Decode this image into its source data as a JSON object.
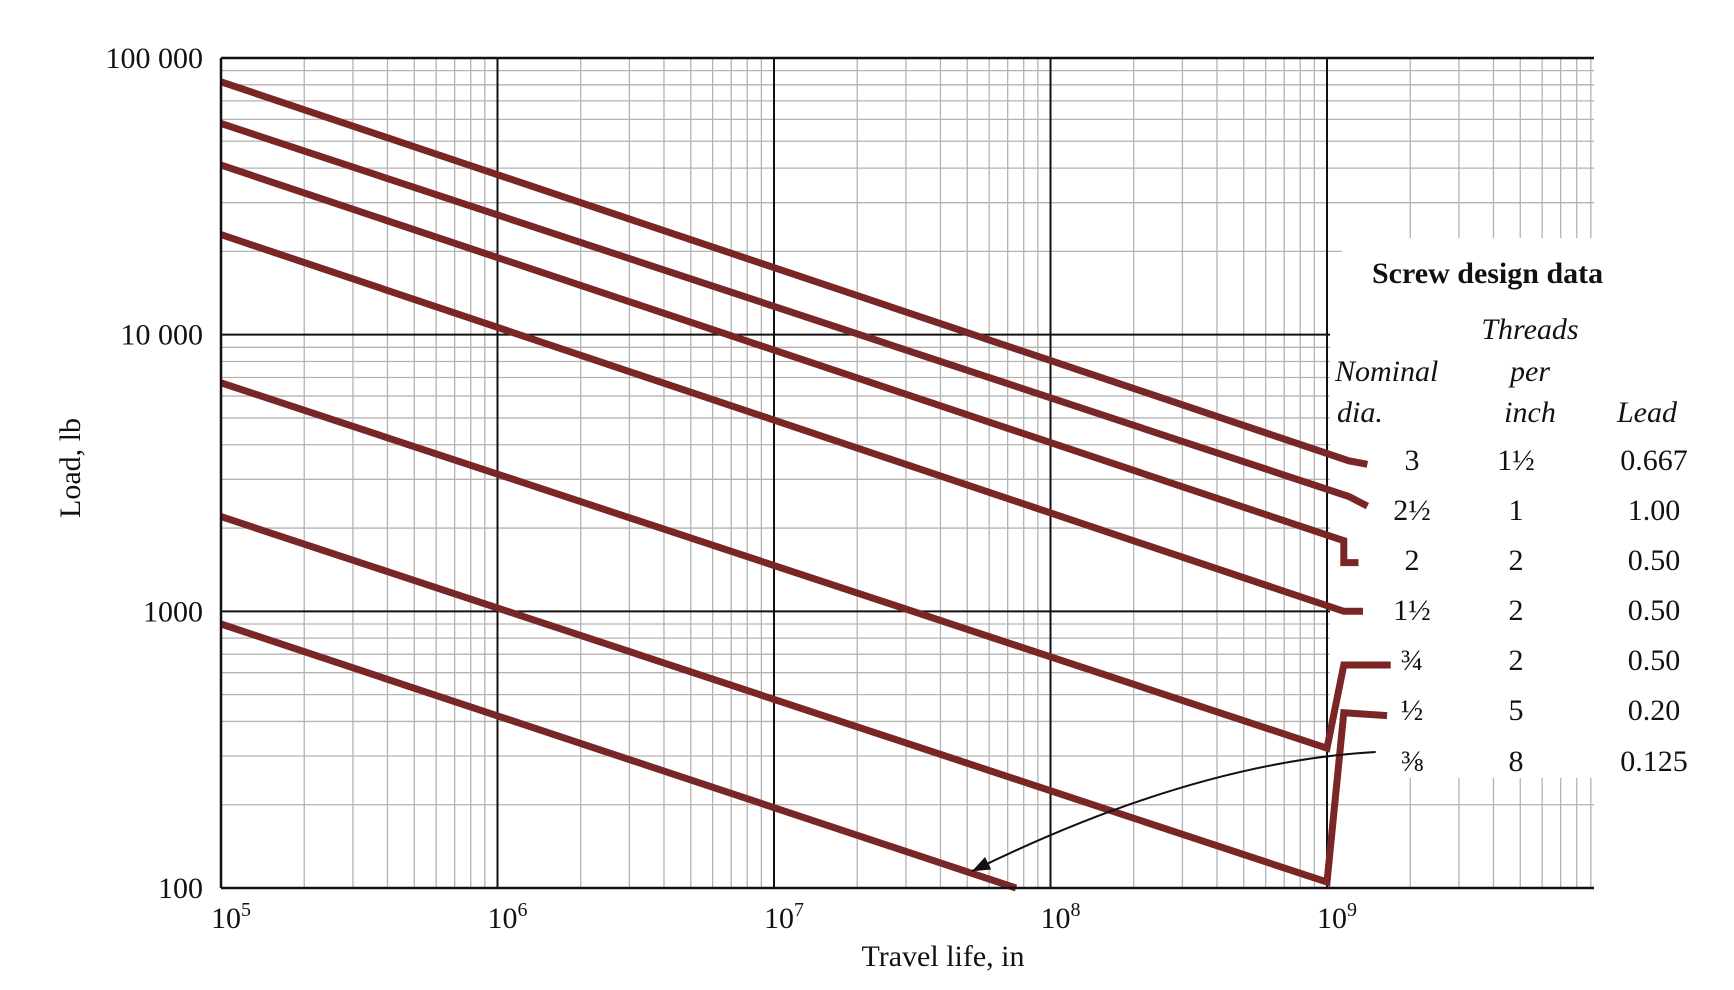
{
  "chart_data": {
    "type": "line",
    "title": "",
    "xlabel": "Travel life, in",
    "ylabel": "Load, lb",
    "x_scale": "log",
    "y_scale": "log",
    "xlim": [
      100000,
      10000000000
    ],
    "ylim": [
      100,
      100000
    ],
    "grid": true,
    "x_ticks": [
      {
        "base": "10",
        "exp": "5"
      },
      {
        "base": "10",
        "exp": "6"
      },
      {
        "base": "10",
        "exp": "7"
      },
      {
        "base": "10",
        "exp": "8"
      },
      {
        "base": "10",
        "exp": "9"
      }
    ],
    "y_ticks": [
      "100",
      "1000",
      "10 000",
      "100 000"
    ],
    "series": [
      {
        "points": [
          [
            100000,
            82000
          ],
          [
            1200000000,
            3500
          ],
          [
            1400000000,
            3400
          ]
        ]
      },
      {
        "points": [
          [
            100000,
            58000
          ],
          [
            1200000000,
            2600
          ],
          [
            1400000000,
            2400
          ]
        ]
      },
      {
        "points": [
          [
            100000,
            41000
          ],
          [
            1150000000,
            1800
          ],
          [
            1150000000,
            1500
          ],
          [
            1300000000,
            1500
          ]
        ]
      },
      {
        "points": [
          [
            100000,
            23000
          ],
          [
            1150000000,
            1000
          ],
          [
            1350000000,
            1000
          ]
        ]
      },
      {
        "points": [
          [
            100000,
            6700
          ],
          [
            1000000000,
            320
          ],
          [
            1150000000,
            640
          ],
          [
            1700000000,
            640
          ]
        ]
      },
      {
        "points": [
          [
            100000,
            2200
          ],
          [
            1000000000,
            105
          ],
          [
            1150000000,
            430
          ],
          [
            1650000000,
            420
          ]
        ]
      },
      {
        "points": [
          [
            100000,
            900
          ],
          [
            75000000,
            100
          ]
        ]
      }
    ],
    "annotations": [
      {
        "text": "",
        "from": [
          1500000000,
          310
        ],
        "to": [
          52000000,
          115
        ],
        "arrow": true
      }
    ],
    "legend": {
      "title": "Screw design data",
      "columns": {
        "nominal_dia": [
          "Nominal",
          "dia."
        ],
        "threads_per_inch": [
          "Threads",
          "per",
          "inch"
        ],
        "lead": [
          "Lead"
        ]
      },
      "rows": [
        {
          "dia": "3",
          "threads": "1½",
          "lead": "0.667"
        },
        {
          "dia": "2½",
          "threads": "1",
          "lead": "1.00"
        },
        {
          "dia": "2",
          "threads": "2",
          "lead": "0.50"
        },
        {
          "dia": "1½",
          "threads": "2",
          "lead": "0.50"
        },
        {
          "dia": "¾",
          "threads": "2",
          "lead": "0.50"
        },
        {
          "dia": "½",
          "threads": "5",
          "lead": "0.20"
        },
        {
          "dia": "⅜",
          "threads": "8",
          "lead": "0.125"
        }
      ]
    },
    "line_color": "#7a2626"
  }
}
